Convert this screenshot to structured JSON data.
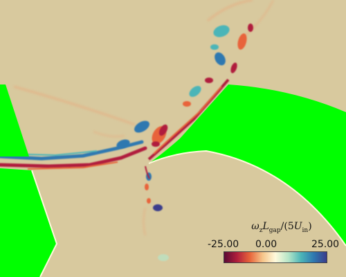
{
  "colors": {
    "background": "#d8c99e",
    "solid_body": "#00ff00",
    "colormap": [
      "#5a0a35",
      "#b01e3c",
      "#e8643a",
      "#f6c58a",
      "#fffadc",
      "#b7e6c8",
      "#4cb5b8",
      "#2f78b0",
      "#3a3c8c"
    ]
  },
  "colorbar": {
    "label_main": "ω",
    "label_sub1": "z",
    "label_L": "L",
    "label_sub2": "gap",
    "label_open": "/(5",
    "label_U": "U",
    "label_sub3": "in",
    "label_close": ")",
    "tick_min": "-25.00",
    "tick_mid": "0.00",
    "tick_max": "25.00",
    "range": [
      -25.0,
      25.0
    ]
  }
}
